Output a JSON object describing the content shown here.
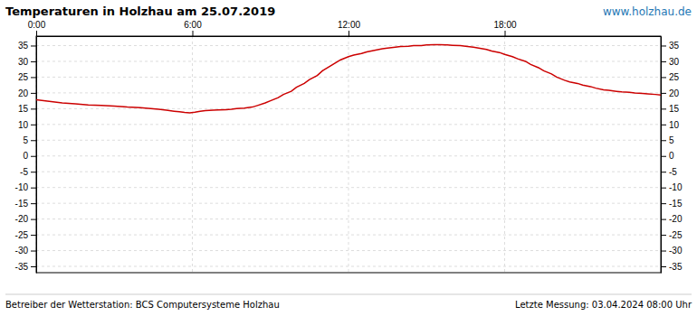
{
  "chart_data": {
    "type": "line",
    "title": "Temperaturen in Holzhau am 25.07.2019",
    "annotations": [
      "www.holzhau.de",
      "Betreiber der Wetterstation: BCS Computersysteme Holzhau",
      "Letzte Messung: 03.04.2024 08:00 Uhr"
    ],
    "color": "#cc0000",
    "grid": true,
    "xlim": [
      0,
      24
    ],
    "xticks": [
      {
        "value": 0,
        "label": "0:00"
      },
      {
        "value": 6,
        "label": "6:00"
      },
      {
        "value": 12,
        "label": "12:00"
      },
      {
        "value": 18,
        "label": "18:00"
      }
    ],
    "ylim": [
      -37,
      38
    ],
    "yticks": [
      -35,
      -30,
      -25,
      -20,
      -15,
      -10,
      -5,
      0,
      5,
      10,
      15,
      20,
      25,
      30,
      35
    ],
    "x": [
      0,
      0.5,
      1.0,
      1.5,
      2.0,
      2.5,
      3.0,
      3.5,
      4.0,
      4.3,
      4.7,
      5.0,
      5.3,
      5.5,
      5.7,
      5.9,
      6.1,
      6.3,
      6.5,
      6.8,
      7.0,
      7.3,
      7.5,
      7.7,
      8.0,
      8.3,
      8.5,
      8.8,
      9.0,
      9.3,
      9.5,
      9.8,
      10.0,
      10.3,
      10.5,
      10.8,
      11.0,
      11.3,
      11.5,
      11.7,
      12.0,
      12.2,
      12.5,
      12.7,
      13.0,
      13.3,
      13.5,
      13.8,
      14.0,
      14.3,
      14.5,
      14.8,
      15.0,
      15.3,
      15.5,
      15.8,
      16.0,
      16.3,
      16.5,
      16.8,
      17.0,
      17.3,
      17.5,
      17.8,
      18.0,
      18.3,
      18.5,
      18.8,
      19.0,
      19.3,
      19.5,
      19.8,
      20.0,
      20.3,
      20.5,
      20.8,
      21.0,
      21.3,
      21.5,
      21.8,
      22.0,
      22.3,
      22.5,
      22.8,
      23.0,
      23.3,
      23.5,
      23.8,
      24.0
    ],
    "values": [
      17.8,
      17.3,
      16.8,
      16.5,
      16.2,
      16.0,
      15.8,
      15.5,
      15.3,
      15.1,
      14.8,
      14.5,
      14.2,
      14.0,
      13.8,
      13.7,
      13.9,
      14.2,
      14.4,
      14.5,
      14.6,
      14.7,
      14.8,
      15.0,
      15.2,
      15.5,
      16.0,
      16.8,
      17.5,
      18.5,
      19.5,
      20.5,
      21.8,
      23.0,
      24.2,
      25.5,
      27.0,
      28.5,
      29.5,
      30.5,
      31.5,
      32.0,
      32.5,
      33.0,
      33.5,
      34.0,
      34.2,
      34.5,
      34.7,
      34.8,
      35.0,
      35.0,
      35.2,
      35.3,
      35.3,
      35.2,
      35.1,
      35.0,
      34.8,
      34.5,
      34.2,
      33.8,
      33.3,
      32.8,
      32.2,
      31.5,
      30.8,
      30.0,
      29.0,
      28.0,
      27.0,
      26.0,
      25.0,
      24.0,
      23.5,
      23.0,
      22.5,
      22.0,
      21.5,
      21.0,
      20.8,
      20.5,
      20.3,
      20.2,
      20.0,
      19.8,
      19.7,
      19.5,
      19.3
    ]
  }
}
